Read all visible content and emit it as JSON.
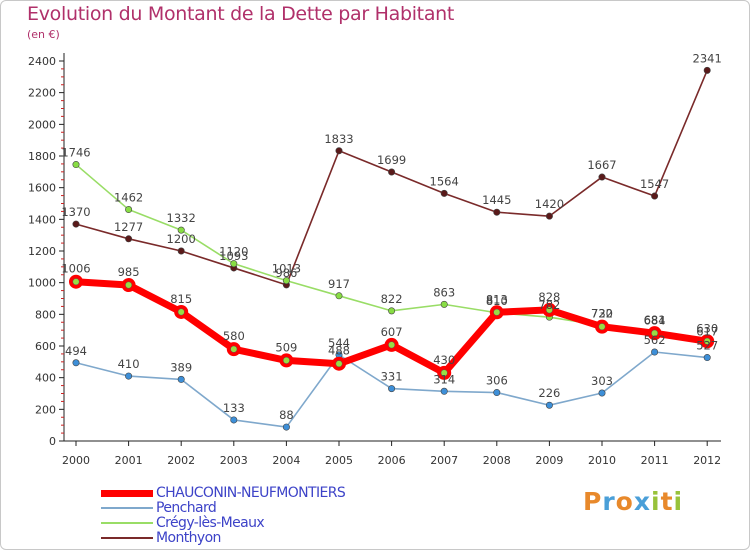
{
  "header": {
    "title": "Evolution du Montant de la Dette par Habitant",
    "unit": "(en €)"
  },
  "logo": {
    "text": "Proxiti",
    "letters": [
      {
        "ch": "P",
        "color": "#e8892b"
      },
      {
        "ch": "r",
        "color": "#4a9fd8"
      },
      {
        "ch": "o",
        "color": "#e8892b"
      },
      {
        "ch": "x",
        "color": "#4a9fd8"
      },
      {
        "ch": "i",
        "color": "#98c23a"
      },
      {
        "ch": "t",
        "color": "#e8892b"
      },
      {
        "ch": "i",
        "color": "#98c23a"
      }
    ]
  },
  "chart_data": {
    "type": "line",
    "title": "Evolution du Montant de la Dette par Habitant",
    "subtitle": "(en €)",
    "xlabel": "",
    "ylabel": "",
    "x": [
      "2000",
      "2001",
      "2002",
      "2003",
      "2004",
      "2005",
      "2006",
      "2007",
      "2008",
      "2009",
      "2010",
      "2011",
      "2012"
    ],
    "ylim": [
      0,
      2400
    ],
    "yticks": [
      "0",
      "200",
      "400",
      "600",
      "800",
      "1000",
      "1200",
      "1400",
      "1600",
      "1800",
      "2000",
      "2200",
      "2400"
    ],
    "grid": false,
    "legend_position": "bottom-left",
    "series": [
      {
        "name": "CHAUCONIN-NEUFMONTIERS",
        "color": "#ff0000",
        "values": [
          1006,
          985,
          815,
          580,
          509,
          488,
          607,
          430,
          813,
          828,
          722,
          681,
          630
        ],
        "labels": [
          "1006",
          "985",
          "815",
          "580",
          "509",
          "488",
          "607",
          "430",
          "813",
          "828",
          "722",
          "681",
          "630"
        ]
      },
      {
        "name": "Penchard",
        "color": "#7fa8cc",
        "values": [
          494,
          410,
          389,
          133,
          88,
          544,
          331,
          314,
          306,
          226,
          303,
          562,
          527
        ],
        "labels": [
          "494",
          "410",
          "389",
          "133",
          "88",
          "544",
          "331",
          "314",
          "306",
          "226",
          "303",
          "562",
          "527"
        ]
      },
      {
        "name": "Crégy-lès-Meaux",
        "color": "#99dd66",
        "values": [
          1746,
          1462,
          1332,
          1120,
          1013,
          917,
          822,
          863,
          810,
          782,
          730,
          684,
          617
        ],
        "labels": [
          "1746",
          "1462",
          "1332",
          "1120",
          "1013",
          "917",
          "822",
          "863",
          "810",
          "782",
          "730",
          "684",
          "617"
        ]
      },
      {
        "name": "Monthyon",
        "color": "#7a2a2a",
        "values": [
          1370,
          1277,
          1200,
          1093,
          986,
          1833,
          1699,
          1564,
          1445,
          1420,
          1667,
          1547,
          2341
        ],
        "labels": [
          "1370",
          "1277",
          "1200",
          "1093",
          "986",
          "1833",
          "1699",
          "1564",
          "1445",
          "1420",
          "1667",
          "1547",
          "2341"
        ]
      }
    ]
  }
}
